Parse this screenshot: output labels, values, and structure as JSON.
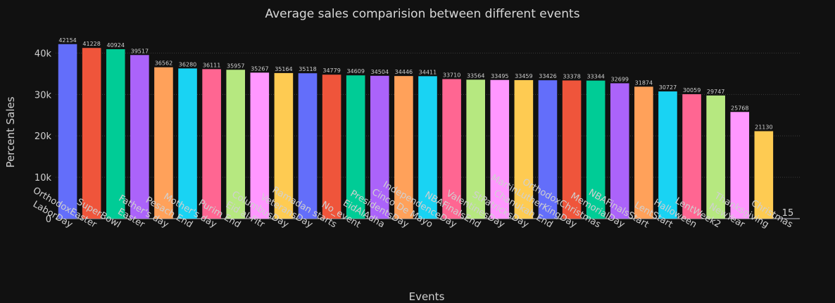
{
  "chart_data": {
    "type": "bar",
    "title": "Average sales comparision between different events",
    "xlabel": "Events",
    "ylabel": "Percent Sales",
    "ylim": [
      0,
      45000
    ],
    "yticks": [
      0,
      10000,
      20000,
      30000,
      40000
    ],
    "ytick_labels": [
      "0",
      "10k",
      "20k",
      "30k",
      "40k"
    ],
    "grid": true,
    "categories": [
      "LaborDay",
      "OrthodoxEaster",
      "SuperBowl",
      "Easter",
      "Father's day",
      "Pesach End",
      "Mother's day",
      "Purim End",
      "Eid al-Fitr",
      "ColumbusDay",
      "VeteransDay",
      "Ramadan starts",
      "No_event",
      "EidAlAdha",
      "PresidentsDay",
      "Cinco De Mayo",
      "IndependenceDay",
      "NBAFinalsEnd",
      "ValentinesDay",
      "StPatricksDay",
      "Chanukah End",
      "MartinLutherKingDay",
      "OrthodoxChristmas",
      "MemorialDay",
      "NBAFinalsStart",
      "LentStart",
      "Halloween",
      "LentWeek2",
      "NewYear",
      "Thanksgiving",
      "Christmas"
    ],
    "values": [
      42154,
      41228,
      40924,
      39517,
      36562,
      36280,
      36111,
      35957,
      35267,
      35164,
      35118,
      34779,
      34609,
      34504,
      34446,
      34411,
      33710,
      33564,
      33495,
      33459,
      33426,
      33378,
      33344,
      32699,
      31874,
      30727,
      30059,
      29747,
      25768,
      21130,
      15
    ],
    "data_labels": [
      "42154",
      "41228",
      "40924",
      "39517",
      "36562",
      "36280",
      "36111",
      "35957",
      "35267",
      "35164",
      "35118",
      "34779",
      "34609",
      "34504",
      "34446",
      "34411",
      "33710",
      "33564",
      "33495",
      "33459",
      "33426",
      "33378",
      "33344",
      "32699",
      "31874",
      "30727",
      "30059",
      "29747",
      "25768",
      "21130",
      "15"
    ],
    "colors": [
      "#636efa",
      "#ef553b",
      "#00cc96",
      "#ab63fa",
      "#ffa15a",
      "#19d3f3",
      "#ff6692",
      "#b6e880",
      "#ff97ff",
      "#fecb52"
    ]
  }
}
